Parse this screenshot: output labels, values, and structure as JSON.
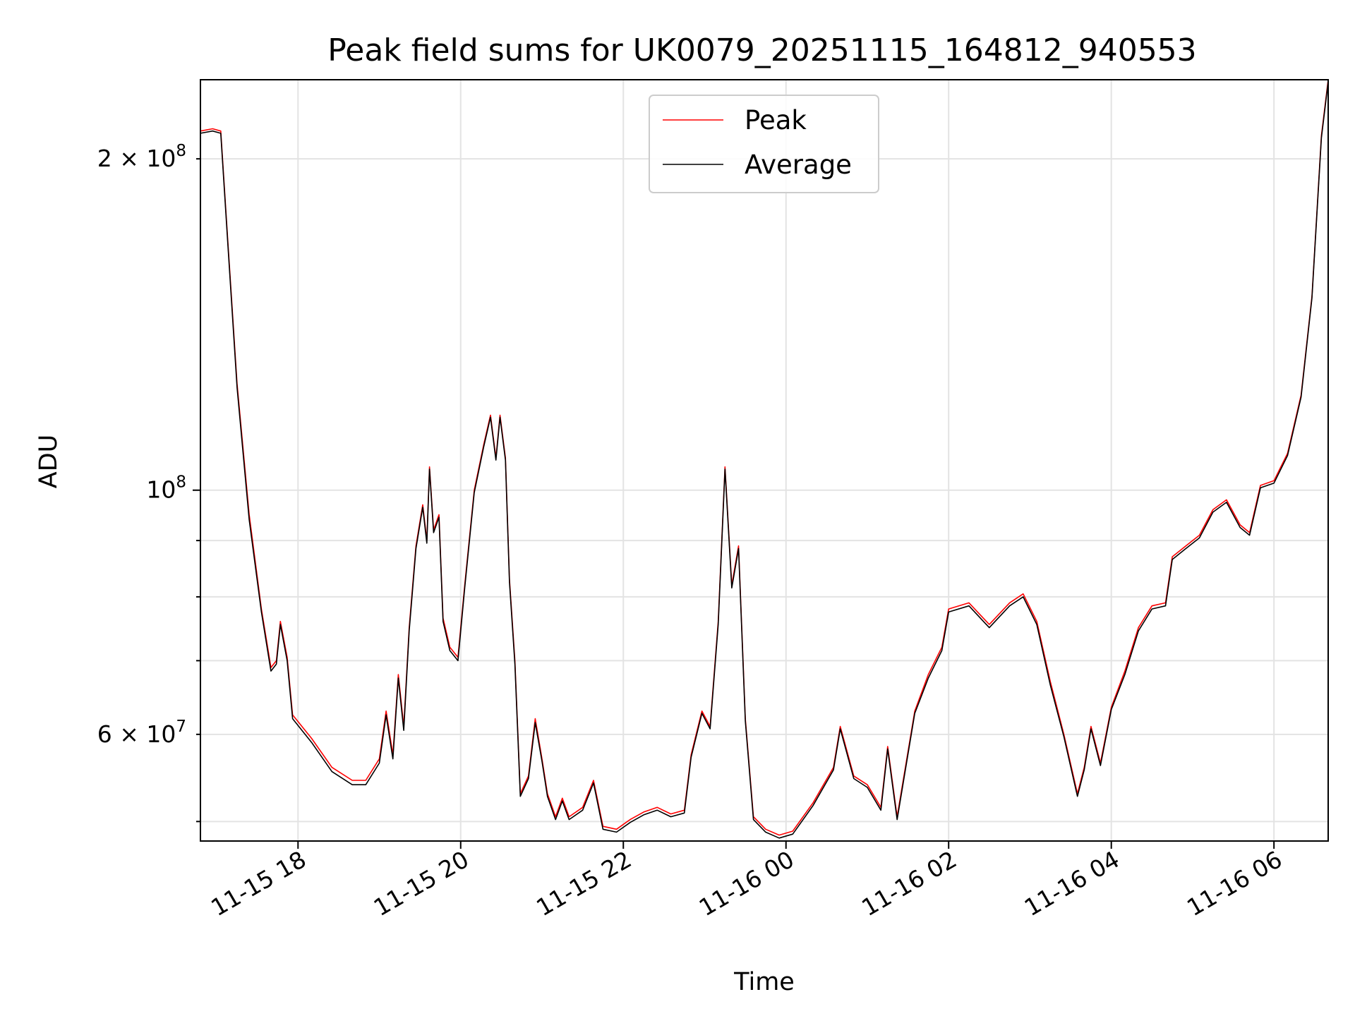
{
  "chart_data": {
    "type": "line",
    "title": "Peak field sums for UK0079_20251115_164812_940553",
    "xlabel": "Time",
    "ylabel": "ADU",
    "yscale": "log",
    "grid": true,
    "legend_position": "upper center",
    "xlim": [
      "2025-11-15T16:48",
      "2025-11-16T06:40"
    ],
    "ylim": [
      48000000,
      236000000
    ],
    "x_ticks": [
      {
        "t": "2025-11-15T18:00",
        "label": "11-15 18"
      },
      {
        "t": "2025-11-15T20:00",
        "label": "11-15 20"
      },
      {
        "t": "2025-11-15T22:00",
        "label": "11-15 22"
      },
      {
        "t": "2025-11-16T00:00",
        "label": "11-16 00"
      },
      {
        "t": "2025-11-16T02:00",
        "label": "11-16 02"
      },
      {
        "t": "2025-11-16T04:00",
        "label": "11-16 04"
      },
      {
        "t": "2025-11-16T06:00",
        "label": "11-16 06"
      }
    ],
    "y_major_ticks": [
      {
        "v": 100000000,
        "label": "10",
        "sup": "8"
      }
    ],
    "y_minor_ticks": [
      {
        "v": 200000000,
        "label": "2 × 10",
        "sup": "8"
      },
      {
        "v": 60000000,
        "label": "6 × 10",
        "sup": "7"
      },
      {
        "v": 90000000,
        "label": "",
        "sup": ""
      },
      {
        "v": 80000000,
        "label": "",
        "sup": ""
      },
      {
        "v": 70000000,
        "label": "",
        "sup": ""
      },
      {
        "v": 50000000,
        "label": "",
        "sup": ""
      }
    ],
    "series": [
      {
        "name": "Peak",
        "color": "#ff0000",
        "points": [
          [
            "2025-11-15T16:48",
            212000000
          ],
          [
            "2025-11-15T16:57",
            213000000
          ],
          [
            "2025-11-15T17:03",
            212000000
          ],
          [
            "2025-11-15T17:08",
            170000000
          ],
          [
            "2025-11-15T17:15",
            125000000
          ],
          [
            "2025-11-15T17:24",
            95000000
          ],
          [
            "2025-11-15T17:33",
            78000000
          ],
          [
            "2025-11-15T17:40",
            69000000
          ],
          [
            "2025-11-15T17:44",
            70000000
          ],
          [
            "2025-11-15T17:47",
            76000000
          ],
          [
            "2025-11-15T17:52",
            70500000
          ],
          [
            "2025-11-15T17:56",
            62500000
          ],
          [
            "2025-11-15T18:10",
            59500000
          ],
          [
            "2025-11-15T18:25",
            56000000
          ],
          [
            "2025-11-15T18:40",
            54500000
          ],
          [
            "2025-11-15T18:50",
            54500000
          ],
          [
            "2025-11-15T19:00",
            57000000
          ],
          [
            "2025-11-15T19:05",
            63000000
          ],
          [
            "2025-11-15T19:10",
            57500000
          ],
          [
            "2025-11-15T19:14",
            68000000
          ],
          [
            "2025-11-15T19:18",
            61000000
          ],
          [
            "2025-11-15T19:22",
            75000000
          ],
          [
            "2025-11-15T19:27",
            89000000
          ],
          [
            "2025-11-15T19:32",
            97000000
          ],
          [
            "2025-11-15T19:35",
            90000000
          ],
          [
            "2025-11-15T19:37",
            105000000
          ],
          [
            "2025-11-15T19:40",
            92000000
          ],
          [
            "2025-11-15T19:44",
            95000000
          ],
          [
            "2025-11-15T19:47",
            76500000
          ],
          [
            "2025-11-15T19:52",
            72000000
          ],
          [
            "2025-11-15T19:58",
            70500000
          ],
          [
            "2025-11-15T20:03",
            82000000
          ],
          [
            "2025-11-15T20:10",
            100000000
          ],
          [
            "2025-11-15T20:17",
            110000000
          ],
          [
            "2025-11-15T20:22",
            117000000
          ],
          [
            "2025-11-15T20:26",
            107000000
          ],
          [
            "2025-11-15T20:29",
            117000000
          ],
          [
            "2025-11-15T20:33",
            107000000
          ],
          [
            "2025-11-15T20:36",
            83000000
          ],
          [
            "2025-11-15T20:40",
            70000000
          ],
          [
            "2025-11-15T20:44",
            53000000
          ],
          [
            "2025-11-15T20:50",
            55000000
          ],
          [
            "2025-11-15T20:55",
            62000000
          ],
          [
            "2025-11-15T21:00",
            57000000
          ],
          [
            "2025-11-15T21:04",
            53000000
          ],
          [
            "2025-11-15T21:10",
            50500000
          ],
          [
            "2025-11-15T21:15",
            52500000
          ],
          [
            "2025-11-15T21:20",
            50500000
          ],
          [
            "2025-11-15T21:30",
            51500000
          ],
          [
            "2025-11-15T21:38",
            54500000
          ],
          [
            "2025-11-15T21:45",
            49500000
          ],
          [
            "2025-11-15T21:55",
            49200000
          ],
          [
            "2025-11-15T22:05",
            50200000
          ],
          [
            "2025-11-15T22:15",
            51000000
          ],
          [
            "2025-11-15T22:25",
            51500000
          ],
          [
            "2025-11-15T22:35",
            50800000
          ],
          [
            "2025-11-15T22:45",
            51200000
          ],
          [
            "2025-11-15T22:50",
            57500000
          ],
          [
            "2025-11-15T22:58",
            63000000
          ],
          [
            "2025-11-15T23:04",
            61000000
          ],
          [
            "2025-11-15T23:10",
            76000000
          ],
          [
            "2025-11-15T23:15",
            105000000
          ],
          [
            "2025-11-15T23:20",
            82000000
          ],
          [
            "2025-11-15T23:25",
            89000000
          ],
          [
            "2025-11-15T23:30",
            62000000
          ],
          [
            "2025-11-15T23:36",
            50500000
          ],
          [
            "2025-11-15T23:45",
            49200000
          ],
          [
            "2025-11-15T23:55",
            48600000
          ],
          [
            "2025-11-16T00:05",
            49000000
          ],
          [
            "2025-11-16T00:20",
            52000000
          ],
          [
            "2025-11-16T00:35",
            56000000
          ],
          [
            "2025-11-16T00:40",
            61000000
          ],
          [
            "2025-11-16T00:50",
            55000000
          ],
          [
            "2025-11-16T01:00",
            54000000
          ],
          [
            "2025-11-16T01:10",
            51500000
          ],
          [
            "2025-11-16T01:15",
            58500000
          ],
          [
            "2025-11-16T01:22",
            50500000
          ],
          [
            "2025-11-16T01:35",
            63000000
          ],
          [
            "2025-11-16T01:45",
            68000000
          ],
          [
            "2025-11-16T01:55",
            72000000
          ],
          [
            "2025-11-16T02:00",
            78000000
          ],
          [
            "2025-11-16T02:15",
            79000000
          ],
          [
            "2025-11-16T02:30",
            75500000
          ],
          [
            "2025-11-16T02:45",
            79000000
          ],
          [
            "2025-11-16T02:55",
            80500000
          ],
          [
            "2025-11-16T03:05",
            76000000
          ],
          [
            "2025-11-16T03:15",
            67000000
          ],
          [
            "2025-11-16T03:25",
            60000000
          ],
          [
            "2025-11-16T03:35",
            53000000
          ],
          [
            "2025-11-16T03:40",
            56000000
          ],
          [
            "2025-11-16T03:45",
            61000000
          ],
          [
            "2025-11-16T03:52",
            56500000
          ],
          [
            "2025-11-16T04:00",
            63500000
          ],
          [
            "2025-11-16T04:10",
            68500000
          ],
          [
            "2025-11-16T04:20",
            75000000
          ],
          [
            "2025-11-16T04:30",
            78500000
          ],
          [
            "2025-11-16T04:40",
            79000000
          ],
          [
            "2025-11-16T04:45",
            87000000
          ],
          [
            "2025-11-16T04:55",
            89000000
          ],
          [
            "2025-11-16T05:05",
            91000000
          ],
          [
            "2025-11-16T05:15",
            96000000
          ],
          [
            "2025-11-16T05:25",
            98000000
          ],
          [
            "2025-11-16T05:35",
            93000000
          ],
          [
            "2025-11-16T05:42",
            91500000
          ],
          [
            "2025-11-16T05:50",
            101000000
          ],
          [
            "2025-11-16T06:00",
            102000000
          ],
          [
            "2025-11-16T06:10",
            108000000
          ],
          [
            "2025-11-16T06:20",
            122000000
          ],
          [
            "2025-11-16T06:28",
            150000000
          ],
          [
            "2025-11-16T06:35",
            210000000
          ],
          [
            "2025-11-16T06:40",
            236000000
          ]
        ]
      },
      {
        "name": "Average",
        "color": "#000000",
        "points": [
          [
            "2025-11-15T16:48",
            211000000
          ],
          [
            "2025-11-15T16:57",
            212000000
          ],
          [
            "2025-11-15T17:03",
            211000000
          ],
          [
            "2025-11-15T17:08",
            169000000
          ],
          [
            "2025-11-15T17:15",
            124000000
          ],
          [
            "2025-11-15T17:24",
            94000000
          ],
          [
            "2025-11-15T17:33",
            77500000
          ],
          [
            "2025-11-15T17:40",
            68500000
          ],
          [
            "2025-11-15T17:44",
            69500000
          ],
          [
            "2025-11-15T17:47",
            75500000
          ],
          [
            "2025-11-15T17:52",
            70000000
          ],
          [
            "2025-11-15T17:56",
            62000000
          ],
          [
            "2025-11-15T18:10",
            59000000
          ],
          [
            "2025-11-15T18:25",
            55500000
          ],
          [
            "2025-11-15T18:40",
            54000000
          ],
          [
            "2025-11-15T18:50",
            54000000
          ],
          [
            "2025-11-15T19:00",
            56500000
          ],
          [
            "2025-11-15T19:05",
            62500000
          ],
          [
            "2025-11-15T19:10",
            57000000
          ],
          [
            "2025-11-15T19:14",
            67500000
          ],
          [
            "2025-11-15T19:18",
            60500000
          ],
          [
            "2025-11-15T19:22",
            74500000
          ],
          [
            "2025-11-15T19:27",
            88500000
          ],
          [
            "2025-11-15T19:32",
            96500000
          ],
          [
            "2025-11-15T19:35",
            89500000
          ],
          [
            "2025-11-15T19:37",
            104500000
          ],
          [
            "2025-11-15T19:40",
            91500000
          ],
          [
            "2025-11-15T19:44",
            94500000
          ],
          [
            "2025-11-15T19:47",
            76000000
          ],
          [
            "2025-11-15T19:52",
            71500000
          ],
          [
            "2025-11-15T19:58",
            70000000
          ],
          [
            "2025-11-15T20:03",
            81500000
          ],
          [
            "2025-11-15T20:10",
            99500000
          ],
          [
            "2025-11-15T20:17",
            109500000
          ],
          [
            "2025-11-15T20:22",
            116500000
          ],
          [
            "2025-11-15T20:26",
            106500000
          ],
          [
            "2025-11-15T20:29",
            116500000
          ],
          [
            "2025-11-15T20:33",
            106500000
          ],
          [
            "2025-11-15T20:36",
            82500000
          ],
          [
            "2025-11-15T20:40",
            69500000
          ],
          [
            "2025-11-15T20:44",
            52700000
          ],
          [
            "2025-11-15T20:50",
            54700000
          ],
          [
            "2025-11-15T20:55",
            61500000
          ],
          [
            "2025-11-15T21:00",
            56700000
          ],
          [
            "2025-11-15T21:04",
            52700000
          ],
          [
            "2025-11-15T21:10",
            50200000
          ],
          [
            "2025-11-15T21:15",
            52200000
          ],
          [
            "2025-11-15T21:20",
            50200000
          ],
          [
            "2025-11-15T21:30",
            51200000
          ],
          [
            "2025-11-15T21:38",
            54200000
          ],
          [
            "2025-11-15T21:45",
            49200000
          ],
          [
            "2025-11-15T21:55",
            48900000
          ],
          [
            "2025-11-15T22:05",
            49900000
          ],
          [
            "2025-11-15T22:15",
            50700000
          ],
          [
            "2025-11-15T22:25",
            51200000
          ],
          [
            "2025-11-15T22:35",
            50500000
          ],
          [
            "2025-11-15T22:45",
            50900000
          ],
          [
            "2025-11-15T22:50",
            57200000
          ],
          [
            "2025-11-15T22:58",
            62700000
          ],
          [
            "2025-11-15T23:04",
            60700000
          ],
          [
            "2025-11-15T23:10",
            75500000
          ],
          [
            "2025-11-15T23:15",
            104500000
          ],
          [
            "2025-11-15T23:20",
            81500000
          ],
          [
            "2025-11-15T23:25",
            88500000
          ],
          [
            "2025-11-15T23:30",
            61700000
          ],
          [
            "2025-11-15T23:36",
            50200000
          ],
          [
            "2025-11-15T23:45",
            48900000
          ],
          [
            "2025-11-15T23:55",
            48300000
          ],
          [
            "2025-11-16T00:05",
            48700000
          ],
          [
            "2025-11-16T00:20",
            51700000
          ],
          [
            "2025-11-16T00:35",
            55700000
          ],
          [
            "2025-11-16T00:40",
            60700000
          ],
          [
            "2025-11-16T00:50",
            54700000
          ],
          [
            "2025-11-16T01:00",
            53700000
          ],
          [
            "2025-11-16T01:10",
            51200000
          ],
          [
            "2025-11-16T01:15",
            58200000
          ],
          [
            "2025-11-16T01:22",
            50200000
          ],
          [
            "2025-11-16T01:35",
            62700000
          ],
          [
            "2025-11-16T01:45",
            67500000
          ],
          [
            "2025-11-16T01:55",
            71500000
          ],
          [
            "2025-11-16T02:00",
            77500000
          ],
          [
            "2025-11-16T02:15",
            78500000
          ],
          [
            "2025-11-16T02:30",
            75000000
          ],
          [
            "2025-11-16T02:45",
            78500000
          ],
          [
            "2025-11-16T02:55",
            80000000
          ],
          [
            "2025-11-16T03:05",
            75500000
          ],
          [
            "2025-11-16T03:15",
            66500000
          ],
          [
            "2025-11-16T03:25",
            59700000
          ],
          [
            "2025-11-16T03:35",
            52700000
          ],
          [
            "2025-11-16T03:40",
            55700000
          ],
          [
            "2025-11-16T03:45",
            60700000
          ],
          [
            "2025-11-16T03:52",
            56200000
          ],
          [
            "2025-11-16T04:00",
            63200000
          ],
          [
            "2025-11-16T04:10",
            68000000
          ],
          [
            "2025-11-16T04:20",
            74500000
          ],
          [
            "2025-11-16T04:30",
            78000000
          ],
          [
            "2025-11-16T04:40",
            78500000
          ],
          [
            "2025-11-16T04:45",
            86500000
          ],
          [
            "2025-11-16T04:55",
            88500000
          ],
          [
            "2025-11-16T05:05",
            90500000
          ],
          [
            "2025-11-16T05:15",
            95500000
          ],
          [
            "2025-11-16T05:25",
            97500000
          ],
          [
            "2025-11-16T05:35",
            92500000
          ],
          [
            "2025-11-16T05:42",
            91000000
          ],
          [
            "2025-11-16T05:50",
            100500000
          ],
          [
            "2025-11-16T06:00",
            101500000
          ],
          [
            "2025-11-16T06:10",
            107500000
          ],
          [
            "2025-11-16T06:20",
            121500000
          ],
          [
            "2025-11-16T06:28",
            149500000
          ],
          [
            "2025-11-16T06:35",
            209000000
          ],
          [
            "2025-11-16T06:40",
            235000000
          ]
        ]
      }
    ]
  }
}
